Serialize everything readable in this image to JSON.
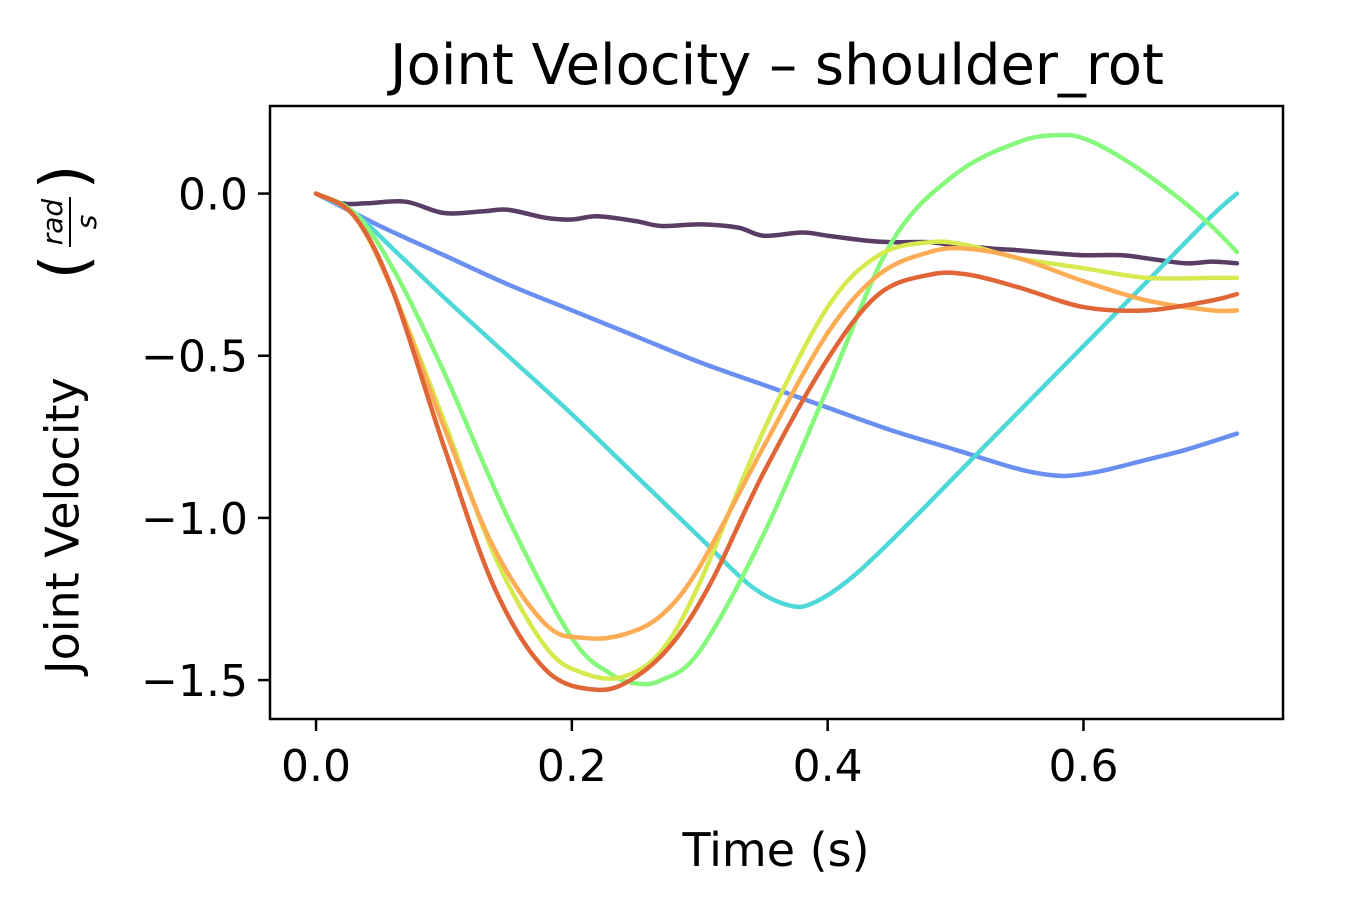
{
  "chart_data": {
    "type": "line",
    "title": "Joint Velocity – shoulder_rot",
    "xlabel": "Time (s)",
    "ylabel": "Joint Velocity",
    "ylabel_unit_numerator": "rad",
    "ylabel_unit_denominator": "s",
    "xlim": [
      -0.036,
      0.756
    ],
    "ylim": [
      -1.62,
      0.27
    ],
    "xticks": [
      0.0,
      0.2,
      0.4,
      0.6
    ],
    "xtick_labels": [
      "0.0",
      "0.2",
      "0.4",
      "0.6"
    ],
    "yticks": [
      0.0,
      -0.5,
      -1.0,
      -1.5
    ],
    "ytick_labels": [
      "0.0",
      "−0.5",
      "−1.0",
      "−1.5"
    ],
    "grid": false,
    "series": [
      {
        "name": "series-1",
        "color": "#5a3d66",
        "x": [
          0.0,
          0.02,
          0.04,
          0.07,
          0.1,
          0.13,
          0.15,
          0.18,
          0.2,
          0.22,
          0.25,
          0.27,
          0.3,
          0.33,
          0.35,
          0.38,
          0.4,
          0.43,
          0.45,
          0.48,
          0.5,
          0.53,
          0.55,
          0.58,
          0.6,
          0.63,
          0.65,
          0.68,
          0.7,
          0.72
        ],
        "values": [
          0.0,
          -0.03,
          -0.03,
          -0.025,
          -0.06,
          -0.055,
          -0.05,
          -0.075,
          -0.08,
          -0.07,
          -0.085,
          -0.1,
          -0.095,
          -0.105,
          -0.13,
          -0.12,
          -0.13,
          -0.145,
          -0.15,
          -0.15,
          -0.16,
          -0.17,
          -0.175,
          -0.185,
          -0.19,
          -0.19,
          -0.2,
          -0.215,
          -0.21,
          -0.215
        ]
      },
      {
        "name": "series-2",
        "color": "#6b8ff0",
        "x": [
          0.0,
          0.05,
          0.1,
          0.15,
          0.2,
          0.25,
          0.3,
          0.35,
          0.4,
          0.45,
          0.5,
          0.55,
          0.58,
          0.6,
          0.62,
          0.65,
          0.68,
          0.72
        ],
        "values": [
          0.0,
          -0.1,
          -0.19,
          -0.28,
          -0.36,
          -0.44,
          -0.52,
          -0.59,
          -0.66,
          -0.73,
          -0.79,
          -0.85,
          -0.87,
          -0.865,
          -0.85,
          -0.82,
          -0.79,
          -0.74
        ]
      },
      {
        "name": "series-3",
        "color": "#4fd8d8",
        "x": [
          0.0,
          0.03,
          0.06,
          0.1,
          0.15,
          0.2,
          0.25,
          0.3,
          0.34,
          0.37,
          0.39,
          0.42,
          0.46,
          0.5,
          0.55,
          0.6,
          0.65,
          0.7,
          0.72
        ],
        "values": [
          0.0,
          -0.06,
          -0.17,
          -0.32,
          -0.5,
          -0.68,
          -0.87,
          -1.06,
          -1.21,
          -1.27,
          -1.26,
          -1.18,
          -1.03,
          -0.87,
          -0.67,
          -0.47,
          -0.27,
          -0.07,
          0.0
        ]
      },
      {
        "name": "series-4",
        "color": "#86f87c",
        "x": [
          0.0,
          0.03,
          0.06,
          0.1,
          0.15,
          0.2,
          0.23,
          0.25,
          0.27,
          0.3,
          0.35,
          0.4,
          0.45,
          0.5,
          0.55,
          0.58,
          0.6,
          0.63,
          0.67,
          0.7,
          0.72
        ],
        "values": [
          0.0,
          -0.06,
          -0.23,
          -0.55,
          -1.0,
          -1.37,
          -1.48,
          -1.51,
          -1.5,
          -1.41,
          -1.05,
          -0.6,
          -0.15,
          0.06,
          0.16,
          0.18,
          0.17,
          0.11,
          0.0,
          -0.1,
          -0.18
        ]
      },
      {
        "name": "series-5",
        "color": "#d6ea50",
        "x": [
          0.0,
          0.03,
          0.06,
          0.1,
          0.14,
          0.18,
          0.21,
          0.24,
          0.27,
          0.3,
          0.35,
          0.4,
          0.44,
          0.48,
          0.51,
          0.55,
          0.6,
          0.65,
          0.7,
          0.72
        ],
        "values": [
          0.0,
          -0.07,
          -0.3,
          -0.7,
          -1.12,
          -1.4,
          -1.48,
          -1.49,
          -1.41,
          -1.2,
          -0.73,
          -0.35,
          -0.19,
          -0.15,
          -0.16,
          -0.2,
          -0.23,
          -0.26,
          -0.26,
          -0.26
        ]
      },
      {
        "name": "series-6",
        "color": "#fbac55",
        "x": [
          0.0,
          0.03,
          0.06,
          0.1,
          0.14,
          0.18,
          0.21,
          0.24,
          0.27,
          0.3,
          0.35,
          0.4,
          0.44,
          0.48,
          0.51,
          0.55,
          0.6,
          0.65,
          0.7,
          0.72
        ],
        "values": [
          0.0,
          -0.07,
          -0.3,
          -0.72,
          -1.1,
          -1.33,
          -1.37,
          -1.36,
          -1.3,
          -1.15,
          -0.78,
          -0.43,
          -0.25,
          -0.18,
          -0.17,
          -0.2,
          -0.27,
          -0.33,
          -0.36,
          -0.36
        ]
      },
      {
        "name": "series-7",
        "color": "#e06638",
        "x": [
          0.0,
          0.03,
          0.06,
          0.1,
          0.14,
          0.18,
          0.22,
          0.25,
          0.28,
          0.31,
          0.35,
          0.4,
          0.44,
          0.48,
          0.51,
          0.55,
          0.6,
          0.65,
          0.7,
          0.72
        ],
        "values": [
          0.0,
          -0.07,
          -0.3,
          -0.78,
          -1.22,
          -1.47,
          -1.53,
          -1.49,
          -1.38,
          -1.19,
          -0.86,
          -0.51,
          -0.31,
          -0.25,
          -0.25,
          -0.29,
          -0.35,
          -0.36,
          -0.33,
          -0.31
        ]
      }
    ]
  }
}
